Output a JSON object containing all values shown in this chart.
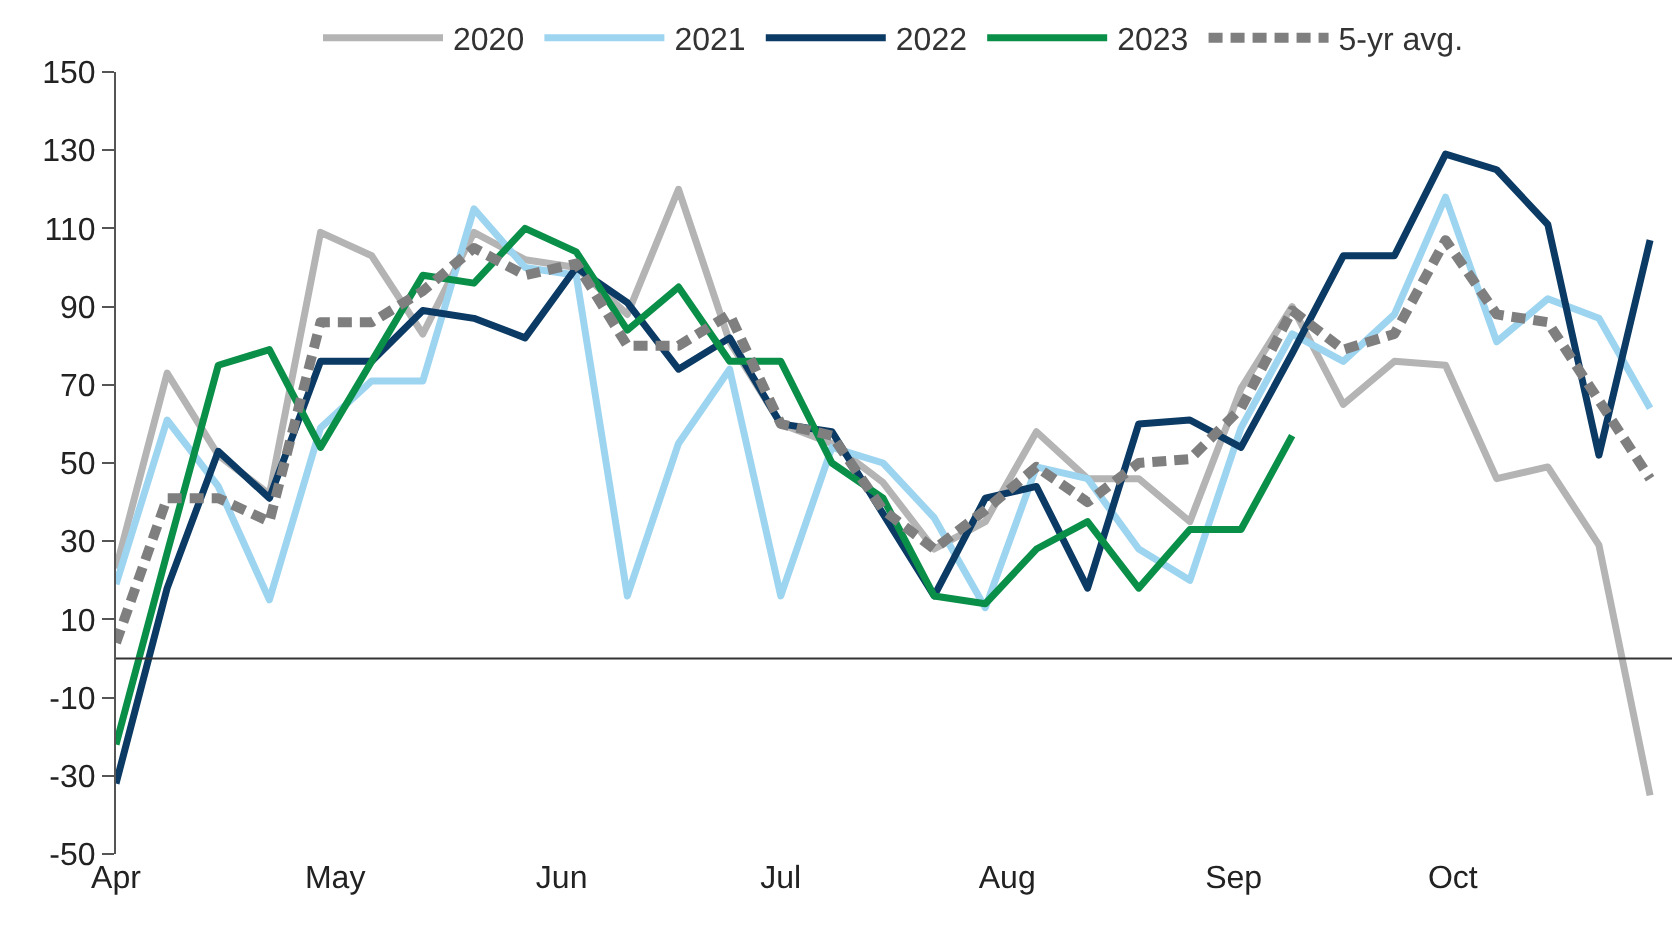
{
  "chart_data": {
    "type": "line",
    "x": [
      "--04-01",
      "--04-08",
      "--04-15",
      "--04-22",
      "--04-29",
      "--05-06",
      "--05-13",
      "--05-20",
      "--05-27",
      "--06-03",
      "--06-10",
      "--06-17",
      "--06-24",
      "--07-01",
      "--07-08",
      "--07-15",
      "--07-22",
      "--07-29",
      "--08-05",
      "--08-12",
      "--08-19",
      "--08-26",
      "--09-02",
      "--09-09",
      "--09-16",
      "--09-23",
      "--09-30",
      "--10-07",
      "--10-14",
      "--10-21",
      "--10-28"
    ],
    "series": [
      {
        "name": "2020",
        "color": "#b4b4b4",
        "values": [
          23,
          73,
          52,
          42,
          109,
          103,
          83,
          109,
          102,
          100,
          88,
          120,
          81,
          60,
          55,
          45,
          28,
          35,
          58,
          46,
          46,
          35,
          69,
          90,
          65,
          76,
          75,
          46,
          49,
          29,
          -35
        ]
      },
      {
        "name": "2021",
        "color": "#9dd5f0",
        "values": [
          19,
          61,
          44,
          15,
          59,
          71,
          71,
          115,
          100,
          98,
          16,
          55,
          74,
          16,
          54,
          50,
          36,
          13,
          49,
          46,
          28,
          20,
          59,
          83,
          76,
          88,
          118,
          81,
          92,
          87,
          64
        ]
      },
      {
        "name": "2022",
        "color": "#0b3a64",
        "values": [
          -32,
          18,
          53,
          41,
          76,
          76,
          89,
          87,
          82,
          100,
          91,
          74,
          82,
          60,
          58,
          37,
          16,
          41,
          44,
          18,
          60,
          61,
          54,
          78,
          103,
          103,
          129,
          125,
          111,
          52,
          107
        ]
      },
      {
        "name": "2023",
        "color": "#0a8f48",
        "x": [
          "--04-01",
          "--04-08",
          "--04-15",
          "--04-22",
          "--04-29",
          "--05-06",
          "--05-13",
          "--05-20",
          "--05-27",
          "--06-03",
          "--06-10",
          "--06-17",
          "--06-24",
          "--07-01",
          "--07-08",
          "--07-15",
          "--07-22",
          "--07-29",
          "--08-05",
          "--08-12",
          "--08-19",
          "--08-26",
          "--09-02",
          "--09-09"
        ],
        "values": [
          -22,
          27,
          75,
          79,
          54,
          76,
          98,
          96,
          110,
          104,
          84,
          95,
          76,
          76,
          50,
          41,
          16,
          14,
          28,
          35,
          18,
          33,
          33,
          57
        ]
      },
      {
        "name": "5-yr avg.",
        "color": "#7f7f7f",
        "line_style": "dashed",
        "values": [
          4,
          41,
          41,
          35,
          86,
          86,
          94,
          105,
          98,
          101,
          80,
          80,
          88,
          60,
          57,
          38,
          28,
          38,
          49,
          40,
          50,
          51,
          64,
          89,
          79,
          83,
          107,
          88,
          86,
          66,
          46
        ]
      }
    ],
    "xlim": [
      "--04-01",
      "--10-31"
    ],
    "xticks": [
      {
        "value": "--04-01",
        "label": "Apr"
      },
      {
        "value": "--05-01",
        "label": "May"
      },
      {
        "value": "--06-01",
        "label": "Jun"
      },
      {
        "value": "--07-01",
        "label": "Jul"
      },
      {
        "value": "--08-01",
        "label": "Aug"
      },
      {
        "value": "--09-01",
        "label": "Sep"
      },
      {
        "value": "--10-01",
        "label": "Oct"
      }
    ],
    "ylim": [
      -50,
      150
    ],
    "yticks": [
      -50,
      -30,
      -10,
      10,
      30,
      50,
      70,
      90,
      110,
      130,
      150
    ],
    "ref_lines": [
      {
        "axis": "y",
        "value": 0,
        "color": "#333333"
      }
    ],
    "grid": false,
    "legend": "top",
    "marker": "none",
    "line_style": "solid"
  }
}
